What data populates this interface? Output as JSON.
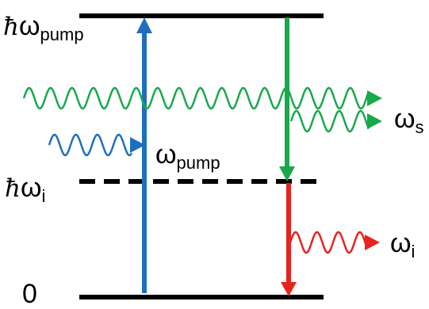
{
  "colors": {
    "pump": "#1f6fbf",
    "signal": "#19a84b",
    "idler": "#e8221d",
    "levels": "#000000"
  },
  "levels": {
    "top_prefix": "ħ",
    "top_symbol": "ω",
    "top_sub": "pump",
    "mid_prefix": "ħ",
    "mid_symbol": "ω",
    "mid_sub": "i",
    "bottom": "0"
  },
  "labels": {
    "pump_symbol": "ω",
    "pump_sub": "pump",
    "signal_symbol": "ω",
    "signal_sub": "s",
    "idler_symbol": "ω",
    "idler_sub": "i"
  },
  "transitions": [
    {
      "name": "pump-absorption",
      "color": "pump",
      "from": "0",
      "to": "top"
    },
    {
      "name": "signal-emission",
      "color": "signal",
      "from": "top",
      "to": "virtual"
    },
    {
      "name": "idler-emission",
      "color": "idler",
      "from": "virtual",
      "to": "0"
    }
  ]
}
